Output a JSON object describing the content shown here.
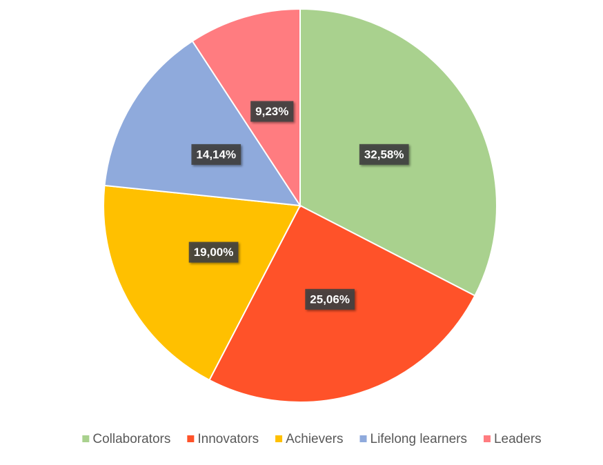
{
  "chart_data": {
    "type": "pie",
    "categories": [
      "Collaborators",
      "Innovators",
      "Achievers",
      "Lifelong learners",
      "Leaders"
    ],
    "values": [
      32.58,
      25.06,
      19.0,
      14.14,
      9.23
    ],
    "value_labels": [
      "32,58%",
      "25,06%",
      "19,00%",
      "14,14%",
      "9,23%"
    ],
    "colors": [
      "#a9d18e",
      "#ff5229",
      "#ffc000",
      "#8faadc",
      "#ff7c80"
    ],
    "legend": "bottom"
  }
}
